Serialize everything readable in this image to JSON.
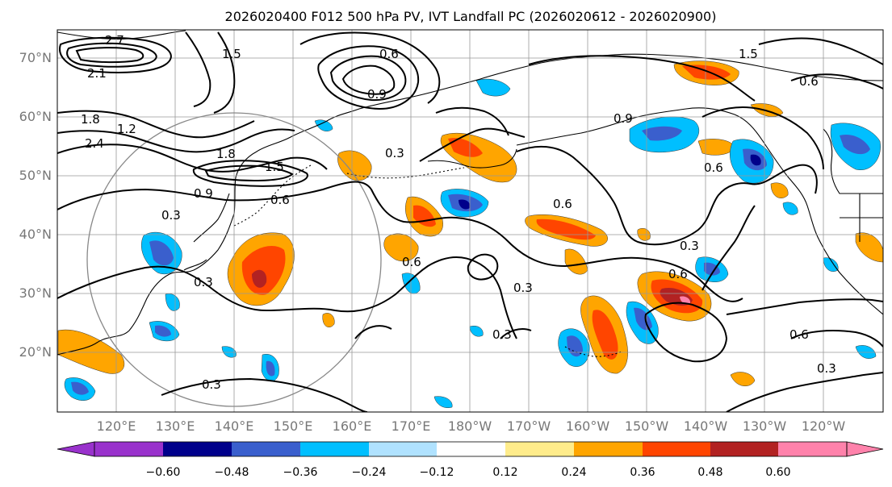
{
  "title": "2026020400 F012 500 hPa PV, IVT Landfall PC (2026020612 - 2026020900)",
  "lat_labels": [
    "70°N",
    "60°N",
    "50°N",
    "40°N",
    "30°N",
    "20°N"
  ],
  "lon_labels": [
    "120°E",
    "130°E",
    "140°E",
    "150°E",
    "160°E",
    "170°E",
    "180°W",
    "170°W",
    "160°W",
    "150°W",
    "140°W",
    "130°W",
    "120°W"
  ],
  "colorbar": {
    "ticks": [
      "−0.60",
      "−0.48",
      "−0.36",
      "−0.24",
      "−0.12",
      "0.12",
      "0.24",
      "0.36",
      "0.48",
      "0.60"
    ],
    "colors": [
      "#9932cc",
      "#00008b",
      "#3a5fcd",
      "#00bfff",
      "#b0e2ff",
      "#ffffff",
      "#ffec8b",
      "#ffa500",
      "#ff4500",
      "#b22222",
      "#ff82ab"
    ]
  },
  "contour_labels": [
    "2.7",
    "2.1",
    "1.8",
    "1.5",
    "2.4",
    "1.2",
    "0.9",
    "0.6",
    "0.3",
    "1.8",
    "1.5",
    "0.9",
    "0.6",
    "0.3",
    "0.6",
    "0.3",
    "0.6",
    "0.3",
    "0.6",
    "0.3",
    "0.6",
    "0.9",
    "1.5",
    "0.6",
    "0.3",
    "0.6",
    "0.3",
    "0.3"
  ]
}
